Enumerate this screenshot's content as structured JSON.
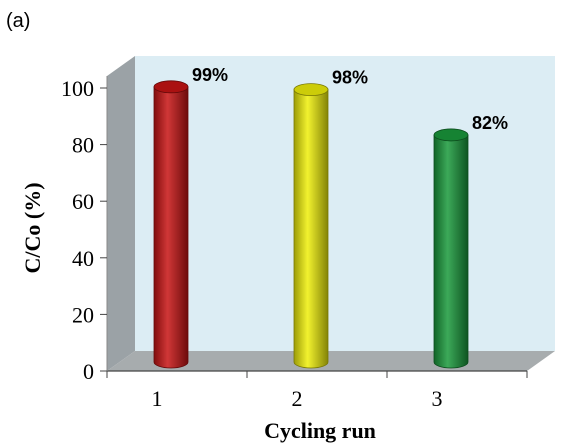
{
  "panel_label": "(a)",
  "chart_data": {
    "type": "bar",
    "categories": [
      "1",
      "2",
      "3"
    ],
    "values": [
      99,
      98,
      82
    ],
    "data_labels": [
      "99%",
      "98%",
      "82%"
    ],
    "bar_colors": [
      "#c81414",
      "#f0f00a",
      "#1a9a3c"
    ],
    "xlabel": "Cycling run",
    "ylabel": "C/Co (%)",
    "ylim": [
      0,
      100
    ],
    "yticks": [
      "0",
      "20",
      "40",
      "60",
      "80",
      "100"
    ],
    "grid": false,
    "legend": false,
    "style": "3d-cylinder",
    "colors": {
      "back_wall": "#dcedf4",
      "side_wall": "#9ba2a6",
      "floor": "#a7acae",
      "outline": "#555555"
    }
  }
}
